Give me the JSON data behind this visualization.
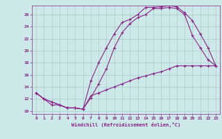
{
  "xlabel": "Windchill (Refroidissement éolien,°C)",
  "bg_color": "#cce8e8",
  "line_color": "#882288",
  "grid_color": "#aacccc",
  "xlim": [
    -0.5,
    23.5
  ],
  "ylim": [
    9.5,
    27.5
  ],
  "xticks": [
    0,
    1,
    2,
    3,
    4,
    5,
    6,
    7,
    8,
    9,
    10,
    11,
    12,
    13,
    14,
    15,
    16,
    17,
    18,
    19,
    20,
    21,
    22,
    23
  ],
  "yticks": [
    10,
    12,
    14,
    16,
    18,
    20,
    22,
    24,
    26
  ],
  "curve1_x": [
    0,
    1,
    2,
    3,
    4,
    5,
    6,
    7,
    8,
    9,
    10,
    11,
    12,
    13,
    14,
    15,
    16,
    17,
    18,
    19,
    20,
    21,
    22,
    23
  ],
  "curve1_y": [
    13,
    12,
    11.5,
    11,
    10.5,
    10.5,
    10.3,
    15,
    18,
    20.5,
    22.8,
    24.7,
    25.2,
    26.0,
    27.2,
    27.2,
    27.3,
    27.5,
    27.3,
    26.3,
    25.0,
    22.8,
    20.5,
    17.5
  ],
  "curve2_x": [
    0,
    1,
    2,
    3,
    4,
    5,
    6,
    7,
    8,
    9,
    10,
    11,
    12,
    13,
    14,
    15,
    16,
    17,
    18,
    19,
    20,
    21,
    22,
    23
  ],
  "curve2_y": [
    13,
    12,
    11,
    11,
    10.5,
    10.5,
    10.3,
    12.2,
    14.5,
    17,
    20.5,
    23,
    24.5,
    25.5,
    26.0,
    27.0,
    27.0,
    27.2,
    27.0,
    26.0,
    22.5,
    20.5,
    18.5,
    17.5
  ],
  "curve3_x": [
    0,
    1,
    2,
    3,
    4,
    5,
    6,
    7,
    8,
    9,
    10,
    11,
    12,
    13,
    14,
    15,
    16,
    17,
    18,
    19,
    20,
    21,
    22,
    23
  ],
  "curve3_y": [
    13,
    12,
    11.5,
    11,
    10.5,
    10.5,
    10.3,
    12.5,
    13.0,
    13.5,
    14.0,
    14.5,
    15.0,
    15.5,
    15.8,
    16.2,
    16.5,
    17.0,
    17.5,
    17.5,
    17.5,
    17.5,
    17.5,
    17.5
  ]
}
